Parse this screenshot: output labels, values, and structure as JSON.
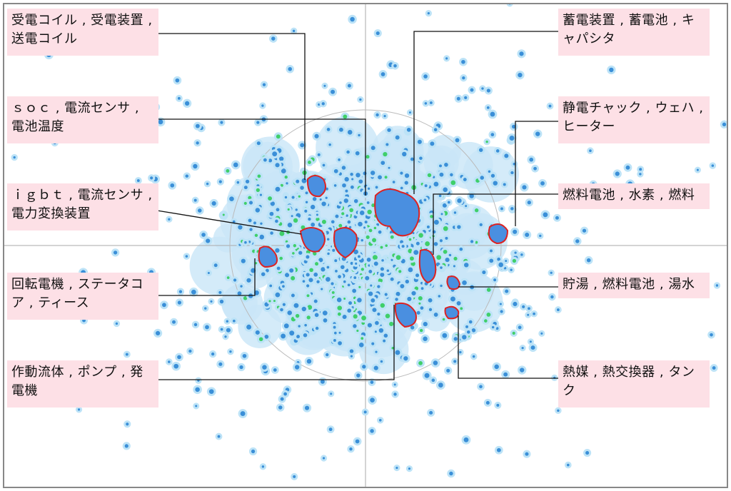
{
  "labels": [
    {
      "text": "受電コイル , 受電装置 , 送電コイル"
    },
    {
      "text": "ｓｏｃ , 電流センサ , 電池温度"
    },
    {
      "text": "ｉｇｂｔ , 電流センサ , 電力変換装置"
    },
    {
      "text": "回転電機 , ステータコア , ティース"
    },
    {
      "text": "作動流体 , ポンプ , 発電機"
    },
    {
      "text": "蓄電装置 , 蓄電池 , キャパシタ"
    },
    {
      "text": "静電チャック , ウェハ , ヒーター"
    },
    {
      "text": "燃料電池 , 水素 , 燃料"
    },
    {
      "text": "貯湯 , 燃料電池 , 湯水"
    },
    {
      "text": "熱媒 , 熱交換器 , タンク"
    }
  ]
}
